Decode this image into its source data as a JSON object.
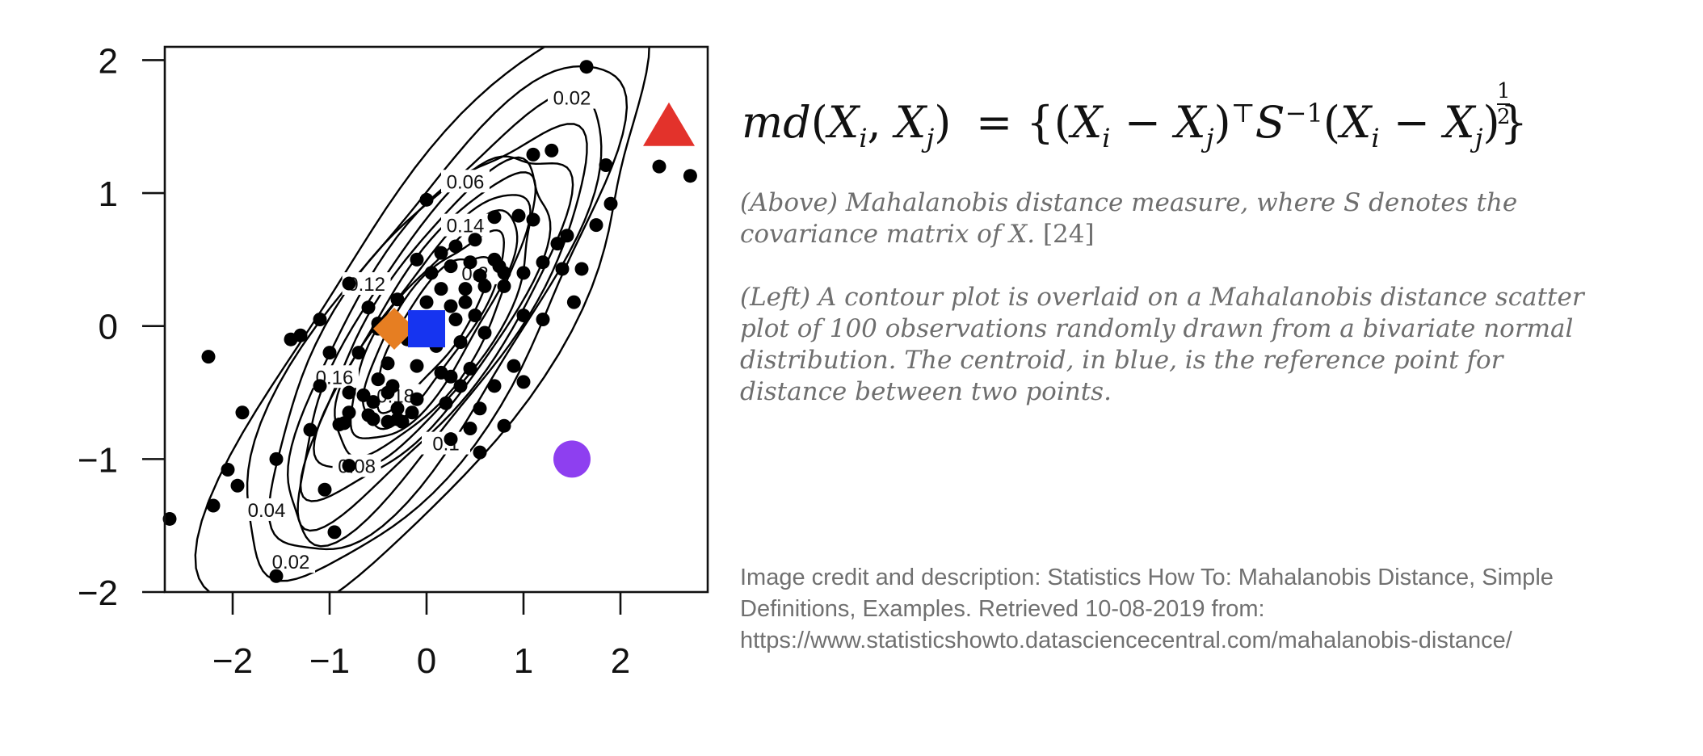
{
  "formula": {
    "lhs_text": "md(X_i, X_j)",
    "rhs_text": "= {(X_i − X_j)^⊤ S^{−1} (X_i − X_j)}^{1/2}",
    "exponent_numerator": "1",
    "exponent_denominator": "2"
  },
  "captions": {
    "above": "(Above) Mahalanobis distance measure, where S denotes the covariance matrix of X.",
    "above_ref": "[24]",
    "left": "(Left) A contour plot is overlaid on a Mahalanobis distance scatter plot of 100 observations randomly drawn from a bivariate normal distribution. The centroid, in blue, is the reference point for distance between two points."
  },
  "credit": {
    "text": "Image credit and description: Statistics How To: Mahalanobis Distance, Simple Definitions, Examples. Retrieved 10-08-2019 from: https://www.statisticshowto.datasciencecentral.com/mahalanobis-distance/"
  },
  "chart_data": {
    "type": "scatter",
    "title": "",
    "xlabel": "",
    "ylabel": "",
    "xlim": [
      -2.7,
      2.9
    ],
    "ylim": [
      -2.0,
      2.1
    ],
    "xticks": [
      -2,
      -1,
      0,
      1,
      2
    ],
    "yticks": [
      -2,
      -1,
      0,
      1,
      2
    ],
    "xtick_labels": [
      "−2",
      "−1",
      "0",
      "1",
      "2"
    ],
    "ytick_labels": [
      "−2",
      "−1",
      "0",
      "1",
      "2"
    ],
    "grid": false,
    "legend": "none",
    "points": [
      [
        1.65,
        1.95
      ],
      [
        2.4,
        1.2
      ],
      [
        2.72,
        1.13
      ],
      [
        1.85,
        1.21
      ],
      [
        1.9,
        0.92
      ],
      [
        1.75,
        0.76
      ],
      [
        1.29,
        1.32
      ],
      [
        1.1,
        1.29
      ],
      [
        0.0,
        0.95
      ],
      [
        0.7,
        0.82
      ],
      [
        0.95,
        0.83
      ],
      [
        1.1,
        0.8
      ],
      [
        1.45,
        0.68
      ],
      [
        0.3,
        0.6
      ],
      [
        0.5,
        0.65
      ],
      [
        0.15,
        0.55
      ],
      [
        0.7,
        0.5
      ],
      [
        1.2,
        0.48
      ],
      [
        1.4,
        0.43
      ],
      [
        1.6,
        0.43
      ],
      [
        -0.1,
        0.5
      ],
      [
        0.25,
        0.45
      ],
      [
        0.45,
        0.48
      ],
      [
        0.75,
        0.45
      ],
      [
        0.05,
        0.4
      ],
      [
        0.55,
        0.38
      ],
      [
        0.8,
        0.4
      ],
      [
        1.0,
        0.4
      ],
      [
        -0.8,
        0.32
      ],
      [
        0.6,
        0.3
      ],
      [
        0.4,
        0.28
      ],
      [
        0.8,
        0.3
      ],
      [
        0.0,
        0.18
      ],
      [
        0.4,
        0.18
      ],
      [
        1.52,
        0.18
      ],
      [
        0.25,
        0.15
      ],
      [
        0.5,
        0.08
      ],
      [
        0.3,
        0.05
      ],
      [
        1.0,
        0.08
      ],
      [
        1.2,
        0.05
      ],
      [
        -1.1,
        0.05
      ],
      [
        -1.3,
        -0.07
      ],
      [
        -1.4,
        -0.1
      ],
      [
        -0.5,
        -0.02
      ],
      [
        -0.2,
        -0.1
      ],
      [
        0.1,
        -0.15
      ],
      [
        0.6,
        -0.05
      ],
      [
        0.35,
        -0.12
      ],
      [
        -1.0,
        -0.2
      ],
      [
        -0.7,
        -0.2
      ],
      [
        -0.4,
        -0.28
      ],
      [
        0.15,
        -0.35
      ],
      [
        -0.1,
        -0.3
      ],
      [
        0.45,
        -0.32
      ],
      [
        0.9,
        -0.3
      ],
      [
        -1.1,
        -0.45
      ],
      [
        -0.5,
        -0.4
      ],
      [
        0.25,
        -0.38
      ],
      [
        -0.8,
        -0.5
      ],
      [
        -0.65,
        -0.52
      ],
      [
        -0.55,
        -0.57
      ],
      [
        0.35,
        -0.45
      ],
      [
        0.7,
        -0.45
      ],
      [
        1.0,
        -0.42
      ],
      [
        -0.4,
        -0.5
      ],
      [
        -0.1,
        -0.55
      ],
      [
        0.55,
        -0.62
      ],
      [
        -0.8,
        -0.65
      ],
      [
        -0.3,
        -0.62
      ],
      [
        -0.15,
        -0.65
      ],
      [
        -0.6,
        -0.67
      ],
      [
        -0.3,
        -0.7
      ],
      [
        0.2,
        -0.58
      ],
      [
        -1.2,
        -0.78
      ],
      [
        -0.85,
        -0.73
      ],
      [
        -0.55,
        -0.7
      ],
      [
        -0.25,
        -0.72
      ],
      [
        0.8,
        -0.75
      ],
      [
        -0.9,
        -0.74
      ],
      [
        -0.4,
        -0.72
      ],
      [
        0.45,
        -0.77
      ],
      [
        0.25,
        -0.85
      ],
      [
        -2.65,
        -1.45
      ],
      [
        -2.25,
        -0.23
      ],
      [
        -1.9,
        -0.65
      ],
      [
        -2.05,
        -1.08
      ],
      [
        -1.95,
        -1.2
      ],
      [
        -2.2,
        -1.35
      ],
      [
        -1.55,
        -1.0
      ],
      [
        -1.05,
        -1.23
      ],
      [
        -0.8,
        -1.05
      ],
      [
        -0.95,
        -1.55
      ],
      [
        -1.55,
        -1.88
      ],
      [
        -0.5,
        0.02
      ],
      [
        -0.3,
        0.2
      ],
      [
        0.15,
        0.28
      ],
      [
        -0.6,
        0.14
      ],
      [
        1.35,
        0.62
      ],
      [
        -0.35,
        -0.45
      ],
      [
        0.55,
        -0.95
      ]
    ],
    "special_points": [
      {
        "shape": "triangle",
        "x": 2.5,
        "y": 1.5,
        "color": "#e3322b"
      },
      {
        "shape": "diamond",
        "x": -0.3,
        "y": -0.02,
        "color": "#e67e22"
      },
      {
        "shape": "square",
        "x": 0.0,
        "y": -0.02,
        "color": "#1634f0"
      },
      {
        "shape": "circle",
        "x": 1.5,
        "y": -1.0,
        "color": "#8e3ff0"
      }
    ],
    "contour_levels": [
      0.02,
      0.04,
      0.06,
      0.08,
      0.1,
      0.12,
      0.14,
      0.16,
      0.18,
      0.2,
      0.22
    ],
    "contour_labels": [
      {
        "text": "0.02",
        "x": 1.5,
        "y": 1.72
      },
      {
        "text": "0.06",
        "x": 0.4,
        "y": 1.09
      },
      {
        "text": "0.14",
        "x": 0.4,
        "y": 0.76
      },
      {
        "text": "0.2",
        "x": 0.5,
        "y": 0.4
      },
      {
        "text": "0.12",
        "x": -0.62,
        "y": 0.32
      },
      {
        "text": "0.16",
        "x": -0.95,
        "y": -0.38
      },
      {
        "text": "0.08",
        "x": -0.72,
        "y": -1.05
      },
      {
        "text": "0.04",
        "x": -1.65,
        "y": -1.38
      },
      {
        "text": "0.02",
        "x": -1.4,
        "y": -1.77
      },
      {
        "text": "0.1",
        "x": 0.2,
        "y": -0.88
      },
      {
        "text": "0.18",
        "x": -0.32,
        "y": -0.52
      }
    ],
    "colors": {
      "points": "#000000",
      "contours": "#000000"
    }
  }
}
